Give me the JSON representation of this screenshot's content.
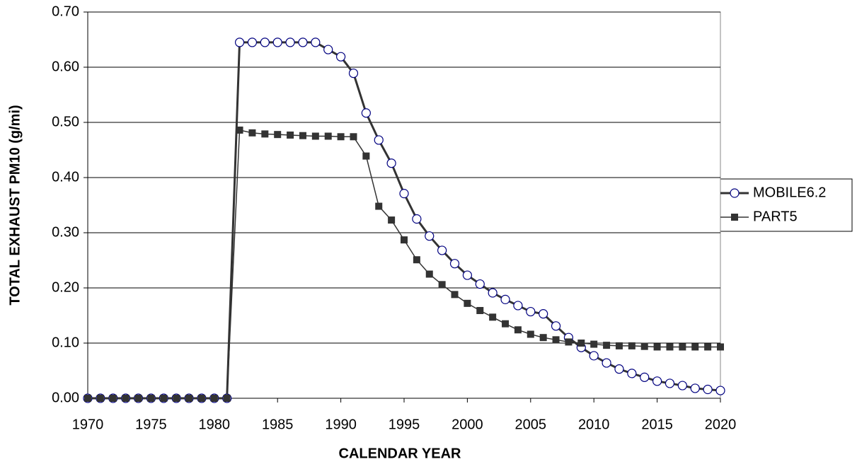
{
  "chart_data": {
    "type": "line",
    "x_label": "CALENDAR YEAR",
    "y_label": "TOTAL EXHAUST PM10 (g/mi)",
    "x": [
      1970,
      1971,
      1972,
      1973,
      1974,
      1975,
      1976,
      1977,
      1978,
      1979,
      1980,
      1981,
      1982,
      1983,
      1984,
      1985,
      1986,
      1987,
      1988,
      1989,
      1990,
      1991,
      1992,
      1993,
      1994,
      1995,
      1996,
      1997,
      1998,
      1999,
      2000,
      2001,
      2002,
      2003,
      2004,
      2005,
      2006,
      2007,
      2008,
      2009,
      2010,
      2011,
      2012,
      2013,
      2014,
      2015,
      2016,
      2017,
      2018,
      2019,
      2020
    ],
    "series": [
      {
        "name": "MOBILE6.2",
        "color": "#333333",
        "marker": "circle",
        "values": [
          0,
          0,
          0,
          0,
          0,
          0,
          0,
          0,
          0,
          0,
          0,
          0,
          0.645,
          0.645,
          0.645,
          0.645,
          0.645,
          0.645,
          0.645,
          0.632,
          0.619,
          0.589,
          0.517,
          0.468,
          0.426,
          0.371,
          0.325,
          0.294,
          0.268,
          0.244,
          0.223,
          0.207,
          0.191,
          0.179,
          0.168,
          0.157,
          0.153,
          0.131,
          0.11,
          0.092,
          0.077,
          0.064,
          0.053,
          0.045,
          0.038,
          0.031,
          0.027,
          0.023,
          0.018,
          0.016,
          0.014
        ]
      },
      {
        "name": "PART5",
        "color": "#333333",
        "marker": "square",
        "values": [
          0,
          0,
          0,
          0,
          0,
          0,
          0,
          0,
          0,
          0,
          0,
          0,
          0.486,
          0.481,
          0.479,
          0.478,
          0.477,
          0.476,
          0.475,
          0.475,
          0.474,
          0.474,
          0.439,
          0.348,
          0.323,
          0.287,
          0.251,
          0.225,
          0.206,
          0.188,
          0.172,
          0.159,
          0.147,
          0.135,
          0.124,
          0.116,
          0.11,
          0.106,
          0.102,
          0.1,
          0.098,
          0.096,
          0.095,
          0.095,
          0.094,
          0.093,
          0.093,
          0.093,
          0.093,
          0.093,
          0.093
        ]
      }
    ],
    "xlim": [
      1970,
      2020
    ],
    "xticks": [
      1970,
      1975,
      1980,
      1985,
      1990,
      1995,
      2000,
      2005,
      2010,
      2015,
      2020
    ],
    "ylim": [
      0,
      0.7
    ],
    "yticks": [
      {
        "value": 0,
        "label": "0.00"
      },
      {
        "value": 0.1,
        "label": "0.10"
      },
      {
        "value": 0.2,
        "label": "0.20"
      },
      {
        "value": 0.3,
        "label": "0.30"
      },
      {
        "value": 0.4,
        "label": "0.40"
      },
      {
        "value": 0.5,
        "label": "0.50"
      },
      {
        "value": 0.6,
        "label": "0.60"
      },
      {
        "value": 0.7,
        "label": "0.70"
      }
    ],
    "grid": true,
    "legend": "right"
  }
}
